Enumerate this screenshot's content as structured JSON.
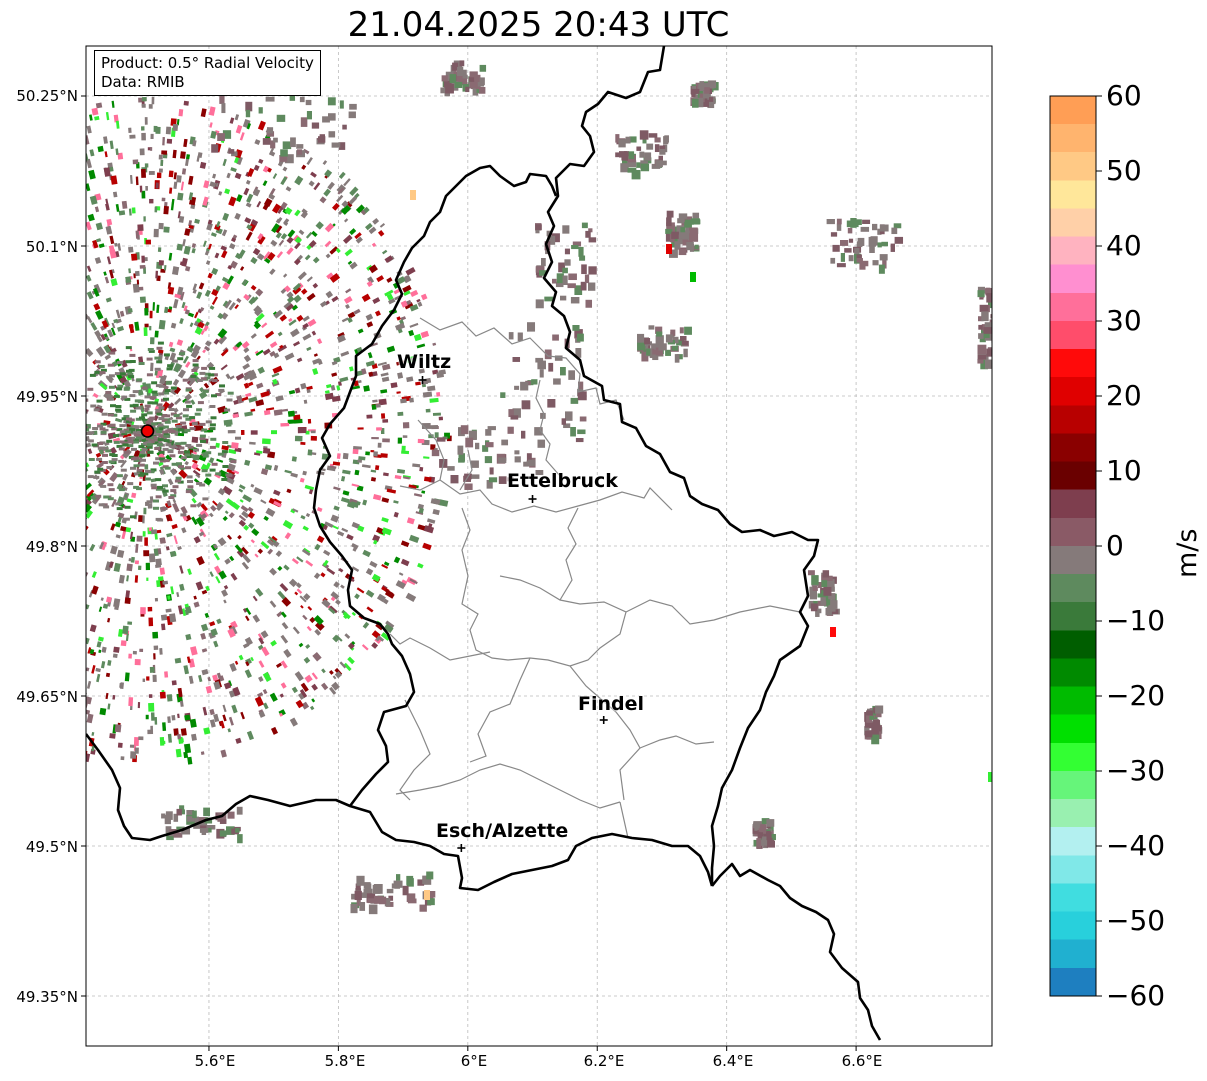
{
  "title": "21.04.2025 20:43 UTC",
  "info_box": {
    "product": "Product: 0.5° Radial Velocity",
    "data": "Data: RMIB"
  },
  "axes": {
    "lat_labels": [
      "50.25°N",
      "50.1°N",
      "49.95°N",
      "49.8°N",
      "49.65°N",
      "49.5°N",
      "49.35°N"
    ],
    "lon_labels": [
      "5.6°E",
      "5.8°E",
      "6°E",
      "6.2°E",
      "6.4°E",
      "6.6°E"
    ],
    "lon_range": [
      5.41,
      6.81
    ],
    "lat_range": [
      49.3,
      50.3
    ]
  },
  "cities": [
    {
      "name": "Wiltz",
      "lon": 5.93,
      "lat": 49.966
    },
    {
      "name": "Ettelbruck",
      "lon": 6.1,
      "lat": 49.847
    },
    {
      "name": "Findel",
      "lon": 6.21,
      "lat": 49.626
    },
    {
      "name": "Esch/Alzette",
      "lon": 5.99,
      "lat": 49.498
    }
  ],
  "radar_site": {
    "lon": 5.505,
    "lat": 49.915
  },
  "colorbar": {
    "unit": "m/s",
    "range": [
      -60,
      60
    ],
    "ticks": [
      "60",
      "50",
      "40",
      "30",
      "20",
      "10",
      "0",
      "−10",
      "−20",
      "−30",
      "−40",
      "−50",
      "−60"
    ],
    "tick_values": [
      60,
      50,
      40,
      30,
      20,
      10,
      0,
      -10,
      -20,
      -30,
      -40,
      -50,
      -60
    ],
    "colors_top_to_bottom": [
      "#ff9e55",
      "#ffb46e",
      "#ffc985",
      "#ffe79a",
      "#ffd0a8",
      "#ffb3c0",
      "#ff8fd0",
      "#ff6f9a",
      "#ff4d6b",
      "#ff0a0a",
      "#e00000",
      "#b80000",
      "#8a0000",
      "#6a0000",
      "#7e3e4e",
      "#8a5a66",
      "#857a7a",
      "#5e8a5e",
      "#3a7a3a",
      "#005e00",
      "#008a00",
      "#00bb00",
      "#00e000",
      "#33ff33",
      "#66f57a",
      "#99f0b0",
      "#b3f0f0",
      "#80e8e8",
      "#40dde0",
      "#28d0dc",
      "#20b0d0",
      "#1e7fc0"
    ]
  }
}
